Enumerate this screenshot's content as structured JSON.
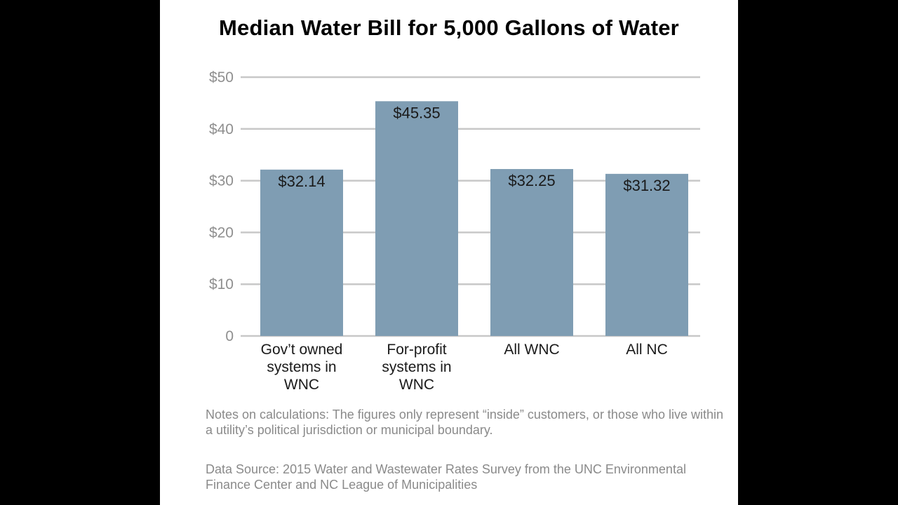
{
  "chart_data": {
    "type": "bar",
    "title": "Median Water Bill for 5,000 Gallons of Water",
    "categories": [
      [
        "Gov’t owned",
        "systems in",
        "WNC"
      ],
      [
        "For-profit",
        "systems in",
        "WNC"
      ],
      [
        "All WNC"
      ],
      [
        "All NC"
      ]
    ],
    "values": [
      32.14,
      45.35,
      32.25,
      31.32
    ],
    "data_labels": [
      "$32.14",
      "$45.35",
      "$32.25",
      "$31.32"
    ],
    "ylim": [
      0,
      50
    ],
    "yticks": [
      0,
      10,
      20,
      30,
      40,
      50
    ],
    "ytick_labels": [
      "0",
      "$10",
      "$20",
      "$30",
      "$40",
      "$50"
    ],
    "grid": true,
    "bar_color": "#7f9db3",
    "grid_color": "#c8c8c8",
    "xlabel": "",
    "ylabel": ""
  },
  "notes": "Notes on calculations: The figures only represent “inside” customers, or those who live within a utility’s political jurisdiction or municipal boundary.",
  "source": "Data Source: 2015 Water and Wastewater Rates Survey from the UNC Environmental Finance Center and NC League of Municipalities"
}
